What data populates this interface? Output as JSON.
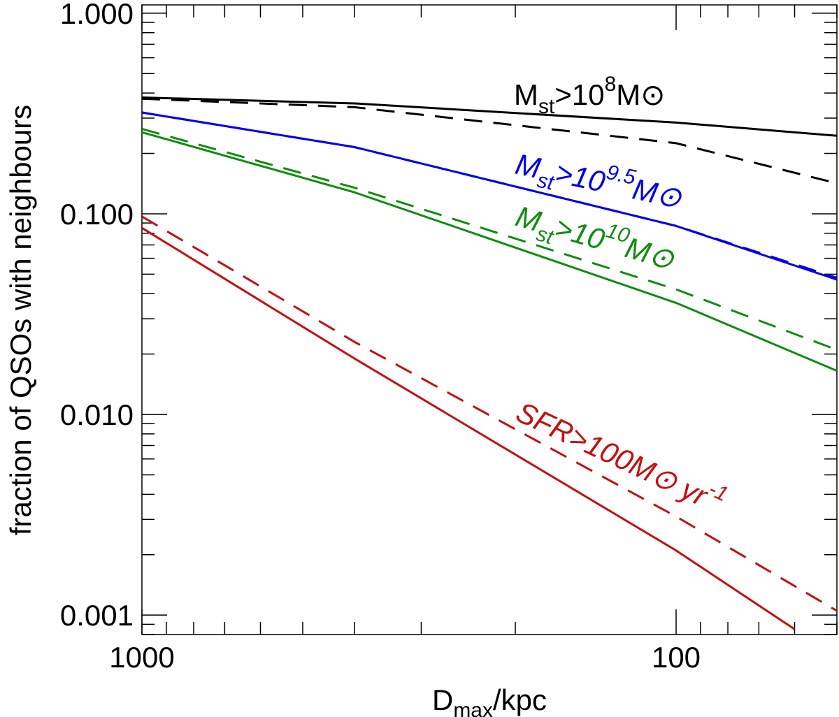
{
  "chart_data": {
    "type": "line",
    "title": "",
    "xlabel_main": "D",
    "xlabel_sub": "max",
    "xlabel_rest": "/kpc",
    "ylabel": "fraction of QSOs with neighbours",
    "x_scale": "log",
    "y_scale": "log",
    "x_reversed": true,
    "xlim": [
      1000,
      50
    ],
    "ylim": [
      0.0008,
      1.1
    ],
    "x_ticks": [
      {
        "value": 1000,
        "label": "1000"
      },
      {
        "value": 100,
        "label": "100"
      }
    ],
    "y_ticks": [
      {
        "value": 1.0,
        "label": "1.000"
      },
      {
        "value": 0.1,
        "label": "0.100"
      },
      {
        "value": 0.01,
        "label": "0.010"
      },
      {
        "value": 0.001,
        "label": "0.001"
      }
    ],
    "series": [
      {
        "name": "Mst>1e8 Msun (solid)",
        "color": "#000000",
        "dash": "solid",
        "x": [
          1000,
          400,
          100,
          50
        ],
        "y": [
          0.38,
          0.355,
          0.285,
          0.245
        ]
      },
      {
        "name": "Mst>1e8 Msun (dashed)",
        "color": "#000000",
        "dash": "dashed",
        "x": [
          1000,
          400,
          100,
          50
        ],
        "y": [
          0.375,
          0.34,
          0.225,
          0.142
        ]
      },
      {
        "name": "Mst>1e9.5 Msun (solid)",
        "color": "#0000ee",
        "dash": "solid",
        "x": [
          1000,
          400,
          100,
          50
        ],
        "y": [
          0.32,
          0.215,
          0.087,
          0.047
        ]
      },
      {
        "name": "Mst>1e9.5 Msun (dashed)",
        "color": "#0000ee",
        "dash": "dashed",
        "x": [
          1000,
          400,
          100,
          50
        ],
        "y": [
          0.32,
          0.215,
          0.087,
          0.048
        ]
      },
      {
        "name": "Mst>1e10 Msun (solid)",
        "color": "#108c10",
        "dash": "solid",
        "x": [
          1000,
          400,
          100,
          50
        ],
        "y": [
          0.255,
          0.128,
          0.036,
          0.0165
        ]
      },
      {
        "name": "Mst>1e10 Msun (dashed)",
        "color": "#108c10",
        "dash": "dashed",
        "x": [
          1000,
          400,
          100,
          50
        ],
        "y": [
          0.265,
          0.135,
          0.042,
          0.021
        ]
      },
      {
        "name": "SFR>100 Msun/yr (solid)",
        "color": "#c41010",
        "dash": "solid",
        "x": [
          1000,
          400,
          100,
          60
        ],
        "y": [
          0.085,
          0.019,
          0.0021,
          0.00085
        ]
      },
      {
        "name": "SFR>100 Msun/yr (dashed)",
        "color": "#c41010",
        "dash": "dashed",
        "x": [
          1000,
          400,
          100,
          50
        ],
        "y": [
          0.097,
          0.023,
          0.0031,
          0.00105
        ]
      }
    ],
    "annotations": [
      {
        "id": "ann-mst8",
        "color": "#000000",
        "italic": false,
        "parts": [
          {
            "text": "M",
            "style": "normal"
          },
          {
            "text": "st",
            "style": "sub"
          },
          {
            "text": ">10",
            "style": "normal"
          },
          {
            "text": "8",
            "style": "sup"
          },
          {
            "text": "M",
            "style": "normal"
          },
          {
            "text": "⊙",
            "style": "normal"
          }
        ]
      },
      {
        "id": "ann-mst95",
        "color": "#0000ee",
        "italic": true,
        "parts": [
          {
            "text": "M",
            "style": "normal"
          },
          {
            "text": "st",
            "style": "sub"
          },
          {
            "text": ">10",
            "style": "normal"
          },
          {
            "text": "9.5",
            "style": "sup"
          },
          {
            "text": "M",
            "style": "normal"
          },
          {
            "text": "⊙",
            "style": "normal"
          }
        ]
      },
      {
        "id": "ann-mst10",
        "color": "#108c10",
        "italic": true,
        "parts": [
          {
            "text": "M",
            "style": "normal"
          },
          {
            "text": "st",
            "style": "sub"
          },
          {
            "text": ">10",
            "style": "normal"
          },
          {
            "text": "10",
            "style": "sup"
          },
          {
            "text": "M",
            "style": "normal"
          },
          {
            "text": "⊙",
            "style": "normal"
          }
        ]
      },
      {
        "id": "ann-sfr",
        "color": "#c41010",
        "italic": true,
        "parts": [
          {
            "text": "SFR>100M",
            "style": "normal"
          },
          {
            "text": "⊙",
            "style": "normal"
          },
          {
            "text": " yr",
            "style": "normal"
          },
          {
            "text": "-1",
            "style": "sup"
          }
        ]
      }
    ]
  }
}
